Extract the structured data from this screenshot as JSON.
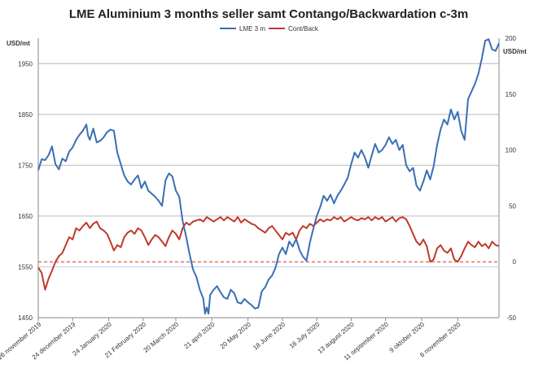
{
  "chart_data": {
    "type": "line",
    "title": "LME Aluminium 3 months seller samt Contango/Backwardation c-3m",
    "left_axis": {
      "unit": "USD/mt",
      "ylim": [
        1450,
        2000
      ],
      "ticks": [
        1450,
        1550,
        1650,
        1750,
        1850,
        1950
      ]
    },
    "right_axis": {
      "unit": "USD/mt",
      "ylim": [
        -50,
        200
      ],
      "ticks": [
        -50,
        0,
        50,
        100,
        150,
        200
      ]
    },
    "x_tick_labels": [
      "26 november 2019",
      "24 december 2019",
      "24 January 2020",
      "21 February 2020",
      "20 March 2020",
      "21 april 2020",
      "20 May 2020",
      "18 June 2020",
      "16 July 2020",
      "13 august 2020",
      "11 september 2020",
      "9 oktober 2020",
      "6 november 2020"
    ],
    "x_range": [
      0,
      260
    ],
    "x_tick_positions": [
      0,
      20,
      41,
      61,
      80,
      101,
      122,
      142,
      162,
      182,
      202,
      223,
      244
    ],
    "legend_position": "top",
    "grid": "horizontal",
    "reference_line": {
      "axis": "right",
      "value": 0,
      "style": "dashed",
      "color": "#c0392b"
    },
    "series": [
      {
        "name": "LME 3 m",
        "axis": "left",
        "color": "#3a6fb5",
        "points": [
          [
            0,
            1740
          ],
          [
            2,
            1762
          ],
          [
            4,
            1760
          ],
          [
            6,
            1770
          ],
          [
            8,
            1787
          ],
          [
            10,
            1752
          ],
          [
            12,
            1742
          ],
          [
            14,
            1763
          ],
          [
            16,
            1758
          ],
          [
            18,
            1777
          ],
          [
            20,
            1785
          ],
          [
            22,
            1800
          ],
          [
            24,
            1810
          ],
          [
            26,
            1818
          ],
          [
            28,
            1830
          ],
          [
            29,
            1808
          ],
          [
            30,
            1800
          ],
          [
            32,
            1822
          ],
          [
            34,
            1795
          ],
          [
            36,
            1798
          ],
          [
            38,
            1805
          ],
          [
            40,
            1815
          ],
          [
            42,
            1820
          ],
          [
            44,
            1818
          ],
          [
            46,
            1775
          ],
          [
            48,
            1752
          ],
          [
            50,
            1730
          ],
          [
            52,
            1718
          ],
          [
            54,
            1712
          ],
          [
            56,
            1722
          ],
          [
            58,
            1730
          ],
          [
            60,
            1705
          ],
          [
            62,
            1718
          ],
          [
            64,
            1700
          ],
          [
            66,
            1694
          ],
          [
            68,
            1688
          ],
          [
            70,
            1680
          ],
          [
            72,
            1670
          ],
          [
            74,
            1720
          ],
          [
            76,
            1734
          ],
          [
            78,
            1728
          ],
          [
            80,
            1700
          ],
          [
            82,
            1688
          ],
          [
            84,
            1640
          ],
          [
            86,
            1610
          ],
          [
            88,
            1575
          ],
          [
            90,
            1545
          ],
          [
            92,
            1530
          ],
          [
            94,
            1505
          ],
          [
            96,
            1488
          ],
          [
            97,
            1458
          ],
          [
            98,
            1470
          ],
          [
            99,
            1458
          ],
          [
            100,
            1495
          ],
          [
            102,
            1505
          ],
          [
            104,
            1512
          ],
          [
            106,
            1500
          ],
          [
            108,
            1490
          ],
          [
            110,
            1487
          ],
          [
            112,
            1505
          ],
          [
            114,
            1498
          ],
          [
            116,
            1480
          ],
          [
            118,
            1478
          ],
          [
            120,
            1487
          ],
          [
            122,
            1480
          ],
          [
            124,
            1475
          ],
          [
            126,
            1468
          ],
          [
            128,
            1470
          ],
          [
            130,
            1502
          ],
          [
            132,
            1510
          ],
          [
            134,
            1525
          ],
          [
            136,
            1533
          ],
          [
            138,
            1548
          ],
          [
            140,
            1575
          ],
          [
            142,
            1588
          ],
          [
            144,
            1575
          ],
          [
            146,
            1600
          ],
          [
            148,
            1590
          ],
          [
            150,
            1605
          ],
          [
            152,
            1583
          ],
          [
            154,
            1570
          ],
          [
            156,
            1562
          ],
          [
            158,
            1598
          ],
          [
            160,
            1625
          ],
          [
            162,
            1650
          ],
          [
            164,
            1668
          ],
          [
            166,
            1690
          ],
          [
            168,
            1680
          ],
          [
            170,
            1692
          ],
          [
            172,
            1675
          ],
          [
            174,
            1690
          ],
          [
            176,
            1700
          ],
          [
            178,
            1712
          ],
          [
            180,
            1725
          ],
          [
            182,
            1752
          ],
          [
            184,
            1775
          ],
          [
            186,
            1765
          ],
          [
            188,
            1780
          ],
          [
            190,
            1765
          ],
          [
            192,
            1745
          ],
          [
            194,
            1770
          ],
          [
            196,
            1792
          ],
          [
            198,
            1775
          ],
          [
            200,
            1780
          ],
          [
            202,
            1790
          ],
          [
            204,
            1805
          ],
          [
            206,
            1792
          ],
          [
            208,
            1800
          ],
          [
            210,
            1780
          ],
          [
            212,
            1790
          ],
          [
            214,
            1750
          ],
          [
            216,
            1738
          ],
          [
            218,
            1745
          ],
          [
            220,
            1710
          ],
          [
            222,
            1700
          ],
          [
            224,
            1718
          ],
          [
            226,
            1740
          ],
          [
            228,
            1722
          ],
          [
            230,
            1748
          ],
          [
            232,
            1790
          ],
          [
            234,
            1820
          ],
          [
            236,
            1840
          ],
          [
            238,
            1830
          ],
          [
            240,
            1860
          ],
          [
            242,
            1840
          ],
          [
            244,
            1855
          ],
          [
            246,
            1818
          ],
          [
            248,
            1800
          ],
          [
            250,
            1880
          ],
          [
            252,
            1895
          ],
          [
            254,
            1910
          ],
          [
            256,
            1930
          ],
          [
            258,
            1960
          ],
          [
            260,
            1995
          ],
          [
            262,
            1998
          ],
          [
            264,
            1978
          ],
          [
            266,
            1975
          ],
          [
            268,
            1990
          ]
        ]
      },
      {
        "name": "Cont/Back",
        "axis": "right",
        "color": "#c0392b",
        "points": [
          [
            0,
            -5
          ],
          [
            2,
            -10
          ],
          [
            4,
            -25
          ],
          [
            6,
            -15
          ],
          [
            8,
            -8
          ],
          [
            10,
            0
          ],
          [
            12,
            5
          ],
          [
            14,
            8
          ],
          [
            16,
            15
          ],
          [
            18,
            22
          ],
          [
            20,
            20
          ],
          [
            22,
            30
          ],
          [
            24,
            28
          ],
          [
            26,
            32
          ],
          [
            28,
            35
          ],
          [
            30,
            30
          ],
          [
            32,
            34
          ],
          [
            34,
            36
          ],
          [
            36,
            30
          ],
          [
            38,
            28
          ],
          [
            40,
            25
          ],
          [
            42,
            18
          ],
          [
            44,
            10
          ],
          [
            46,
            15
          ],
          [
            48,
            13
          ],
          [
            50,
            22
          ],
          [
            52,
            26
          ],
          [
            54,
            28
          ],
          [
            56,
            25
          ],
          [
            58,
            30
          ],
          [
            60,
            28
          ],
          [
            62,
            22
          ],
          [
            64,
            15
          ],
          [
            66,
            20
          ],
          [
            68,
            24
          ],
          [
            70,
            22
          ],
          [
            72,
            18
          ],
          [
            74,
            14
          ],
          [
            76,
            22
          ],
          [
            78,
            28
          ],
          [
            80,
            25
          ],
          [
            82,
            20
          ],
          [
            84,
            30
          ],
          [
            86,
            35
          ],
          [
            88,
            33
          ],
          [
            90,
            36
          ],
          [
            92,
            37
          ],
          [
            94,
            38
          ],
          [
            96,
            36
          ],
          [
            98,
            40
          ],
          [
            100,
            38
          ],
          [
            102,
            36
          ],
          [
            104,
            38
          ],
          [
            106,
            40
          ],
          [
            108,
            37
          ],
          [
            110,
            40
          ],
          [
            112,
            38
          ],
          [
            114,
            36
          ],
          [
            116,
            40
          ],
          [
            118,
            35
          ],
          [
            120,
            38
          ],
          [
            122,
            36
          ],
          [
            124,
            34
          ],
          [
            126,
            33
          ],
          [
            128,
            30
          ],
          [
            130,
            28
          ],
          [
            132,
            26
          ],
          [
            134,
            30
          ],
          [
            136,
            32
          ],
          [
            138,
            28
          ],
          [
            140,
            24
          ],
          [
            142,
            20
          ],
          [
            144,
            26
          ],
          [
            146,
            24
          ],
          [
            148,
            26
          ],
          [
            150,
            20
          ],
          [
            152,
            28
          ],
          [
            154,
            32
          ],
          [
            156,
            30
          ],
          [
            158,
            34
          ],
          [
            160,
            32
          ],
          [
            162,
            35
          ],
          [
            164,
            38
          ],
          [
            166,
            36
          ],
          [
            168,
            38
          ],
          [
            170,
            37
          ],
          [
            172,
            40
          ],
          [
            174,
            38
          ],
          [
            176,
            40
          ],
          [
            178,
            36
          ],
          [
            180,
            38
          ],
          [
            182,
            40
          ],
          [
            184,
            38
          ],
          [
            186,
            37
          ],
          [
            188,
            39
          ],
          [
            190,
            38
          ],
          [
            192,
            40
          ],
          [
            194,
            37
          ],
          [
            196,
            40
          ],
          [
            198,
            38
          ],
          [
            200,
            40
          ],
          [
            202,
            36
          ],
          [
            204,
            38
          ],
          [
            206,
            40
          ],
          [
            208,
            36
          ],
          [
            210,
            39
          ],
          [
            212,
            40
          ],
          [
            214,
            38
          ],
          [
            216,
            32
          ],
          [
            218,
            25
          ],
          [
            220,
            18
          ],
          [
            222,
            15
          ],
          [
            224,
            20
          ],
          [
            226,
            14
          ],
          [
            228,
            0
          ],
          [
            230,
            2
          ],
          [
            232,
            12
          ],
          [
            234,
            15
          ],
          [
            236,
            10
          ],
          [
            238,
            8
          ],
          [
            240,
            12
          ],
          [
            242,
            2
          ],
          [
            244,
            0
          ],
          [
            246,
            5
          ],
          [
            248,
            12
          ],
          [
            250,
            18
          ],
          [
            252,
            15
          ],
          [
            254,
            13
          ],
          [
            256,
            18
          ],
          [
            258,
            14
          ],
          [
            260,
            16
          ],
          [
            262,
            12
          ],
          [
            264,
            18
          ],
          [
            266,
            15
          ],
          [
            268,
            14
          ]
        ]
      }
    ]
  }
}
